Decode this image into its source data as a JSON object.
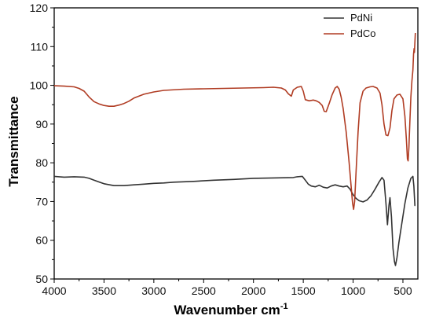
{
  "chart_data": {
    "type": "line",
    "xlabel": "Wavenumber cm",
    "xlabel_superscript": "-1",
    "ylabel": "Transmittance",
    "xlim": [
      4000,
      350
    ],
    "x_reversed": true,
    "ylim": [
      50,
      120
    ],
    "x_ticks": [
      4000,
      3500,
      3000,
      2500,
      2000,
      1500,
      1000,
      500
    ],
    "x_tick_labels": [
      "4000",
      "3500",
      "3000",
      "2500",
      "2000",
      "1500",
      "1000",
      "500"
    ],
    "y_ticks": [
      50,
      60,
      70,
      80,
      90,
      100,
      110,
      120
    ],
    "y_tick_labels": [
      "50",
      "60",
      "70",
      "80",
      "90",
      "100",
      "110",
      "120"
    ],
    "grid": false,
    "legend_position": "top-right",
    "series": [
      {
        "name": "PdNi",
        "color": "#333333",
        "points": [
          [
            4000,
            76.5
          ],
          [
            3900,
            76.3
          ],
          [
            3800,
            76.4
          ],
          [
            3700,
            76.3
          ],
          [
            3650,
            76.0
          ],
          [
            3600,
            75.5
          ],
          [
            3500,
            74.6
          ],
          [
            3400,
            74.1
          ],
          [
            3300,
            74.1
          ],
          [
            3200,
            74.3
          ],
          [
            3100,
            74.5
          ],
          [
            3000,
            74.7
          ],
          [
            2900,
            74.8
          ],
          [
            2800,
            75.0
          ],
          [
            2600,
            75.2
          ],
          [
            2400,
            75.5
          ],
          [
            2200,
            75.7
          ],
          [
            2000,
            76.0
          ],
          [
            1800,
            76.1
          ],
          [
            1600,
            76.2
          ],
          [
            1560,
            76.4
          ],
          [
            1510,
            76.5
          ],
          [
            1480,
            75.5
          ],
          [
            1450,
            74.5
          ],
          [
            1420,
            74.0
          ],
          [
            1380,
            73.8
          ],
          [
            1340,
            74.2
          ],
          [
            1300,
            73.7
          ],
          [
            1260,
            73.5
          ],
          [
            1220,
            74.0
          ],
          [
            1180,
            74.3
          ],
          [
            1140,
            74.0
          ],
          [
            1100,
            73.8
          ],
          [
            1060,
            74.0
          ],
          [
            1030,
            73.2
          ],
          [
            1000,
            71.8
          ],
          [
            970,
            70.8
          ],
          [
            940,
            70.2
          ],
          [
            900,
            69.9
          ],
          [
            860,
            70.4
          ],
          [
            820,
            71.5
          ],
          [
            780,
            73.2
          ],
          [
            740,
            75.0
          ],
          [
            710,
            76.2
          ],
          [
            690,
            75.5
          ],
          [
            670,
            69.5
          ],
          [
            655,
            64.0
          ],
          [
            640,
            69.0
          ],
          [
            630,
            71.0
          ],
          [
            615,
            66.0
          ],
          [
            600,
            58.0
          ],
          [
            585,
            54.5
          ],
          [
            575,
            53.5
          ],
          [
            560,
            55.5
          ],
          [
            540,
            59.5
          ],
          [
            510,
            64.5
          ],
          [
            480,
            69.5
          ],
          [
            450,
            73.5
          ],
          [
            420,
            76.0
          ],
          [
            400,
            76.5
          ],
          [
            390,
            74.0
          ],
          [
            380,
            69.0
          ],
          [
            375,
            69.0
          ]
        ]
      },
      {
        "name": "PdCo",
        "color": "#b03c23",
        "points": [
          [
            4000,
            99.9
          ],
          [
            3900,
            99.8
          ],
          [
            3800,
            99.6
          ],
          [
            3750,
            99.2
          ],
          [
            3700,
            98.5
          ],
          [
            3650,
            97.0
          ],
          [
            3600,
            95.8
          ],
          [
            3550,
            95.2
          ],
          [
            3500,
            94.8
          ],
          [
            3450,
            94.6
          ],
          [
            3400,
            94.6
          ],
          [
            3350,
            94.9
          ],
          [
            3300,
            95.3
          ],
          [
            3250,
            95.9
          ],
          [
            3200,
            96.7
          ],
          [
            3100,
            97.7
          ],
          [
            3000,
            98.3
          ],
          [
            2900,
            98.7
          ],
          [
            2700,
            99.0
          ],
          [
            2500,
            99.1
          ],
          [
            2300,
            99.2
          ],
          [
            2100,
            99.3
          ],
          [
            1900,
            99.4
          ],
          [
            1800,
            99.5
          ],
          [
            1720,
            99.3
          ],
          [
            1680,
            98.8
          ],
          [
            1650,
            97.8
          ],
          [
            1620,
            97.2
          ],
          [
            1600,
            98.8
          ],
          [
            1560,
            99.5
          ],
          [
            1520,
            99.7
          ],
          [
            1500,
            98.5
          ],
          [
            1480,
            96.3
          ],
          [
            1440,
            96.0
          ],
          [
            1400,
            96.2
          ],
          [
            1370,
            96.0
          ],
          [
            1340,
            95.6
          ],
          [
            1310,
            94.8
          ],
          [
            1290,
            93.3
          ],
          [
            1270,
            93.2
          ],
          [
            1240,
            95.3
          ],
          [
            1210,
            97.6
          ],
          [
            1180,
            99.3
          ],
          [
            1160,
            99.7
          ],
          [
            1140,
            99.0
          ],
          [
            1120,
            97.0
          ],
          [
            1100,
            94.0
          ],
          [
            1070,
            88.0
          ],
          [
            1040,
            80.0
          ],
          [
            1020,
            74.0
          ],
          [
            1005,
            69.5
          ],
          [
            995,
            68.0
          ],
          [
            985,
            70.0
          ],
          [
            970,
            78.0
          ],
          [
            950,
            88.0
          ],
          [
            930,
            95.5
          ],
          [
            900,
            98.5
          ],
          [
            870,
            99.3
          ],
          [
            830,
            99.6
          ],
          [
            800,
            99.7
          ],
          [
            760,
            99.3
          ],
          [
            730,
            98.0
          ],
          [
            710,
            95.0
          ],
          [
            690,
            90.0
          ],
          [
            670,
            87.2
          ],
          [
            650,
            87.0
          ],
          [
            630,
            89.0
          ],
          [
            610,
            93.5
          ],
          [
            590,
            96.5
          ],
          [
            560,
            97.5
          ],
          [
            530,
            97.7
          ],
          [
            500,
            96.5
          ],
          [
            480,
            92.0
          ],
          [
            465,
            86.0
          ],
          [
            455,
            81.0
          ],
          [
            448,
            80.5
          ],
          [
            440,
            84.0
          ],
          [
            430,
            91.0
          ],
          [
            420,
            97.0
          ],
          [
            410,
            101.0
          ],
          [
            400,
            104.0
          ],
          [
            393,
            108.0
          ],
          [
            388,
            109.5
          ],
          [
            385,
            108.5
          ],
          [
            380,
            111.0
          ],
          [
            375,
            113.5
          ]
        ]
      }
    ]
  }
}
